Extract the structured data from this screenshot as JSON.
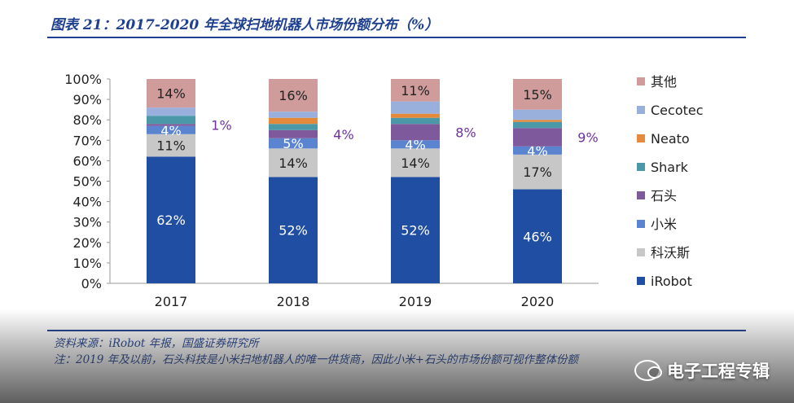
{
  "header": {
    "title": "图表 21：2017-2020 年全球扫地机器人市场份额分布（%）"
  },
  "footer": {
    "source": "资料来源：iRobot 年报，国盛证券研究所",
    "note": "注：2019 年及以前，石头科技是小米扫地机器人的唯一供货商，因此小米+石头的市场份额可视作整体份额"
  },
  "watermark": {
    "text": "电子工程专辑"
  },
  "chart_data": {
    "type": "bar",
    "stacked": true,
    "title": "",
    "xlabel": "",
    "ylabel": "",
    "ylim": [
      0,
      100
    ],
    "y_ticks": [
      "0%",
      "10%",
      "20%",
      "30%",
      "40%",
      "50%",
      "60%",
      "70%",
      "80%",
      "90%",
      "100%"
    ],
    "categories": [
      "2017",
      "2018",
      "2019",
      "2020"
    ],
    "legend_position": "right",
    "series": [
      {
        "name": "iRobot",
        "color": "#1f4ea3",
        "values": [
          62,
          52,
          52,
          46
        ],
        "labels": [
          "62%",
          "52%",
          "52%",
          "46%"
        ],
        "label_color": "#ffffff"
      },
      {
        "name": "科沃斯",
        "color": "#c7c7c7",
        "values": [
          11,
          14,
          14,
          17
        ],
        "labels": [
          "11%",
          "14%",
          "14%",
          "17%"
        ],
        "label_color": "#222222"
      },
      {
        "name": "小米",
        "color": "#5b84d0",
        "values": [
          4,
          5,
          4,
          4
        ],
        "labels": [
          "4%",
          "5%",
          "4%",
          "4%"
        ],
        "label_color": "#ffffff"
      },
      {
        "name": "石头",
        "color": "#7e5a9c",
        "values": [
          1,
          4,
          8,
          9
        ],
        "labels": [
          "1%",
          "4%",
          "8%",
          "9%"
        ],
        "label_color": "#7030a0",
        "label_outside": true
      },
      {
        "name": "Shark",
        "color": "#4a98a8",
        "values": [
          4,
          3,
          3,
          3
        ]
      },
      {
        "name": "Neato",
        "color": "#e58a3a",
        "values": [
          0,
          3,
          2,
          1
        ]
      },
      {
        "name": "Cecotec",
        "color": "#9ab0dc",
        "values": [
          4,
          3,
          6,
          5
        ]
      },
      {
        "name": "其他",
        "color": "#cf9b9b",
        "values": [
          14,
          16,
          11,
          15
        ],
        "labels": [
          "14%",
          "16%",
          "11%",
          "15%"
        ],
        "label_color": "#222222"
      }
    ]
  }
}
